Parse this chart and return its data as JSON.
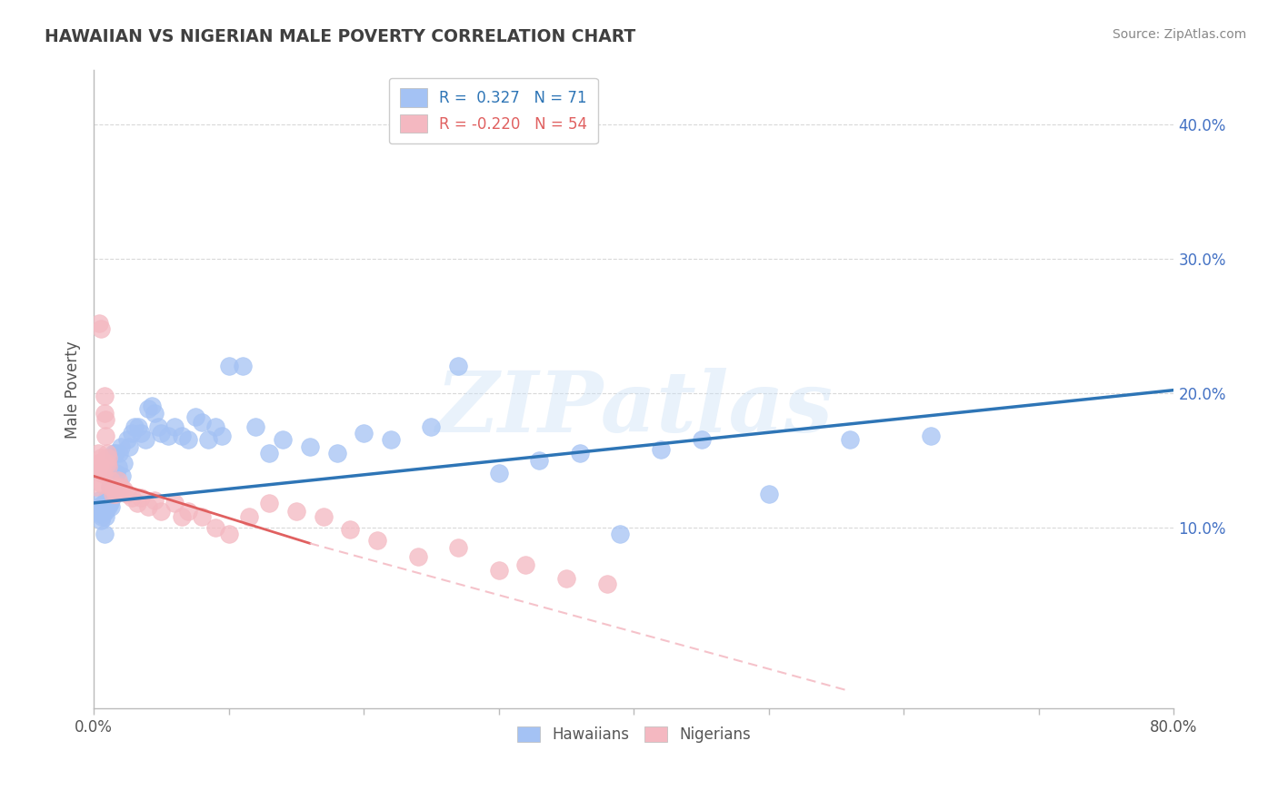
{
  "title": "HAWAIIAN VS NIGERIAN MALE POVERTY CORRELATION CHART",
  "source": "Source: ZipAtlas.com",
  "ylabel": "Male Poverty",
  "watermark": "ZIPatlas",
  "legend_blue_r": "0.327",
  "legend_blue_n": "71",
  "legend_pink_r": "-0.220",
  "legend_pink_n": "54",
  "xlim": [
    0.0,
    0.8
  ],
  "ylim": [
    -0.035,
    0.44
  ],
  "xtick_positions": [
    0.0,
    0.1,
    0.2,
    0.3,
    0.4,
    0.5,
    0.6,
    0.7,
    0.8
  ],
  "xtick_labels_show": {
    "0.0": "0.0%",
    "0.80": "80.0%"
  },
  "yticks_right": [
    0.1,
    0.2,
    0.3,
    0.4
  ],
  "blue_color": "#a4c2f4",
  "pink_color": "#f4b8c1",
  "blue_line_color": "#2e75b6",
  "pink_line_color": "#e06060",
  "pink_dash_color": "#f4b8c1",
  "background_color": "#ffffff",
  "grid_color": "#d9d9d9",
  "title_color": "#404040",
  "right_axis_color": "#4472c4",
  "hawaiians_x": [
    0.003,
    0.004,
    0.005,
    0.005,
    0.006,
    0.006,
    0.007,
    0.007,
    0.008,
    0.008,
    0.009,
    0.009,
    0.01,
    0.01,
    0.011,
    0.011,
    0.012,
    0.012,
    0.013,
    0.013,
    0.014,
    0.015,
    0.015,
    0.016,
    0.017,
    0.018,
    0.019,
    0.02,
    0.021,
    0.022,
    0.025,
    0.026,
    0.028,
    0.03,
    0.033,
    0.035,
    0.038,
    0.04,
    0.043,
    0.045,
    0.048,
    0.05,
    0.055,
    0.06,
    0.065,
    0.07,
    0.075,
    0.08,
    0.085,
    0.09,
    0.095,
    0.1,
    0.11,
    0.12,
    0.13,
    0.14,
    0.16,
    0.18,
    0.2,
    0.22,
    0.25,
    0.27,
    0.3,
    0.33,
    0.36,
    0.39,
    0.42,
    0.45,
    0.5,
    0.56,
    0.62
  ],
  "hawaiians_y": [
    0.115,
    0.12,
    0.105,
    0.11,
    0.108,
    0.115,
    0.118,
    0.112,
    0.095,
    0.118,
    0.112,
    0.108,
    0.118,
    0.122,
    0.115,
    0.12,
    0.13,
    0.118,
    0.12,
    0.115,
    0.128,
    0.13,
    0.155,
    0.155,
    0.14,
    0.145,
    0.155,
    0.16,
    0.138,
    0.148,
    0.165,
    0.16,
    0.17,
    0.175,
    0.175,
    0.17,
    0.165,
    0.188,
    0.19,
    0.185,
    0.175,
    0.17,
    0.168,
    0.175,
    0.168,
    0.165,
    0.182,
    0.178,
    0.165,
    0.175,
    0.168,
    0.22,
    0.22,
    0.175,
    0.155,
    0.165,
    0.16,
    0.155,
    0.17,
    0.165,
    0.175,
    0.22,
    0.14,
    0.15,
    0.155,
    0.095,
    0.158,
    0.165,
    0.125,
    0.165,
    0.168
  ],
  "nigerians_x": [
    0.002,
    0.003,
    0.003,
    0.004,
    0.004,
    0.005,
    0.005,
    0.005,
    0.006,
    0.006,
    0.007,
    0.007,
    0.008,
    0.008,
    0.009,
    0.009,
    0.01,
    0.01,
    0.011,
    0.011,
    0.012,
    0.013,
    0.014,
    0.015,
    0.016,
    0.017,
    0.018,
    0.02,
    0.022,
    0.025,
    0.028,
    0.032,
    0.035,
    0.04,
    0.045,
    0.05,
    0.06,
    0.065,
    0.07,
    0.08,
    0.09,
    0.1,
    0.115,
    0.13,
    0.15,
    0.17,
    0.19,
    0.21,
    0.24,
    0.27,
    0.3,
    0.32,
    0.35,
    0.38
  ],
  "nigerians_y": [
    0.13,
    0.148,
    0.155,
    0.145,
    0.252,
    0.248,
    0.152,
    0.148,
    0.14,
    0.132,
    0.148,
    0.14,
    0.185,
    0.198,
    0.168,
    0.18,
    0.155,
    0.148,
    0.152,
    0.145,
    0.13,
    0.135,
    0.125,
    0.128,
    0.125,
    0.13,
    0.135,
    0.13,
    0.128,
    0.125,
    0.122,
    0.118,
    0.122,
    0.115,
    0.12,
    0.112,
    0.118,
    0.108,
    0.112,
    0.108,
    0.1,
    0.095,
    0.108,
    0.118,
    0.112,
    0.108,
    0.098,
    0.09,
    0.078,
    0.085,
    0.068,
    0.072,
    0.062,
    0.058
  ],
  "blue_trendline": [
    [
      0.0,
      0.8
    ],
    [
      0.118,
      0.202
    ]
  ],
  "pink_trendline_solid": [
    [
      0.0,
      0.16
    ],
    [
      0.138,
      0.088
    ]
  ],
  "pink_trendline_dash": [
    [
      0.16,
      0.56
    ],
    [
      0.088,
      -0.022
    ]
  ]
}
